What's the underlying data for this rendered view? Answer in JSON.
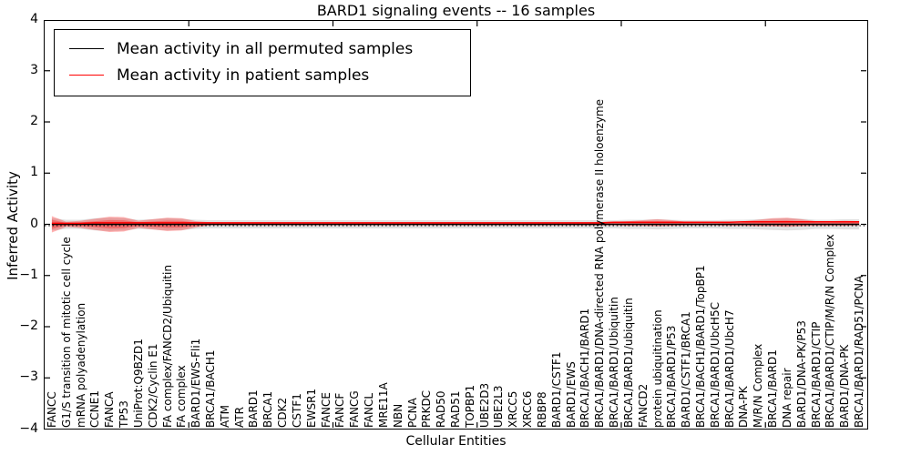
{
  "title": "BARD1 signaling events -- 16 samples",
  "axes": {
    "ylabel": "Inferred Activity",
    "xlabel": "Cellular Entities",
    "yticks": [
      4,
      3,
      2,
      1,
      0,
      -1,
      -2,
      -3,
      -4
    ],
    "ylim": [
      -4,
      4
    ]
  },
  "legend": {
    "entries": [
      {
        "label": "Mean activity in all permuted samples",
        "color": "#000000"
      },
      {
        "label": "Mean activity in patient samples",
        "color": "#ff0000"
      }
    ],
    "position": "upper left"
  },
  "colors": {
    "permuted_line": "#000000",
    "patient_line": "#ff0000",
    "patient_band_fill": "rgba(255,0,0,0.30)",
    "permuted_band_fill": "rgba(0,0,0,0.12)",
    "zero_reference_line": "#000000"
  },
  "chart_data": {
    "type": "line",
    "title": "BARD1 signaling events -- 16 samples",
    "xlabel": "Cellular Entities",
    "ylabel": "Inferred Activity",
    "ylim": [
      -4,
      4
    ],
    "legend_position": "upper left",
    "grid": false,
    "xticks_at": [
      10,
      20,
      30,
      40,
      50
    ],
    "categories": [
      "FANCC",
      "G1/S transition of mitotic cell cycle",
      "mRNA polyadenylation",
      "CCNE1",
      "FANCA",
      "TP53",
      "UniProt:Q9BZD1",
      "CDK2/Cyclin E1",
      "FA complex/FANCD2/Ubiquitin",
      "FA complex",
      "BARD1/EWS-Fli1",
      "BRCA1/BACH1",
      "ATM",
      "ATR",
      "BARD1",
      "BRCA1",
      "CDK2",
      "CSTF1",
      "EWSR1",
      "FANCE",
      "FANCF",
      "FANCG",
      "FANCL",
      "MRE11A",
      "NBN",
      "PCNA",
      "PRKDC",
      "RAD50",
      "RAD51",
      "TOPBP1",
      "UBE2D3",
      "UBE2L3",
      "XRCC5",
      "XRCC6",
      "RBBP8",
      "BARD1/CSTF1",
      "BARD1/EWS",
      "BRCA1/BACH1/BARD1",
      "BRCA1/BARD1/DNA-directed RNA polymerase II holoenzyme",
      "BRCA1/BARD1/Ubiquitin",
      "BRCA1/BARD1/ubiquitin",
      "FANCD2",
      "protein ubiquitination",
      "BRCA1/BARD1/P53",
      "BARD1/CSTF1/BRCA1",
      "BRCA1/BACH1/BARD1/TopBP1",
      "BRCA1/BARD1/UbcH5C",
      "BRCA1/BARD1/UbcH7",
      "DNA-PK",
      "M/R/N Complex",
      "BRCA1/BARD1",
      "DNA repair",
      "BARD1/DNA-PK/P53",
      "BRCA1/BARD1/CTIP",
      "BRCA1/BARD1/CTIP/M/R/N Complex",
      "BARD1/DNA-PK",
      "BRCA1/BARD1/RAD51/PCNA"
    ],
    "series": [
      {
        "name": "Mean activity in all permuted samples",
        "color": "#000000",
        "values": [
          0,
          0,
          0,
          0,
          0,
          0,
          0,
          0,
          0,
          0,
          0,
          0,
          0,
          0,
          0,
          0,
          0,
          0,
          0,
          0,
          0,
          0,
          0,
          0,
          0,
          0,
          0,
          0,
          0,
          0,
          0,
          0,
          0,
          0,
          0,
          0,
          0,
          0,
          0,
          0,
          0,
          0,
          0,
          0,
          0,
          0,
          0,
          0,
          0,
          0,
          0,
          0,
          0,
          0,
          0,
          0,
          0
        ]
      },
      {
        "name": "Mean activity in patient samples",
        "color": "#ff0000",
        "values": [
          0.02,
          0.02,
          0.02,
          0.03,
          0.03,
          0.03,
          0.03,
          0.03,
          0.03,
          0.03,
          0.03,
          0.03,
          0.03,
          0.03,
          0.03,
          0.03,
          0.03,
          0.03,
          0.03,
          0.03,
          0.03,
          0.03,
          0.03,
          0.03,
          0.03,
          0.03,
          0.03,
          0.03,
          0.03,
          0.03,
          0.03,
          0.03,
          0.03,
          0.03,
          0.03,
          0.03,
          0.03,
          0.03,
          0.03,
          0.04,
          0.04,
          0.04,
          0.04,
          0.04,
          0.04,
          0.04,
          0.04,
          0.04,
          0.05,
          0.05,
          0.05,
          0.05,
          0.05,
          0.05,
          0.05,
          0.05,
          0.05
        ]
      }
    ],
    "bands": [
      {
        "name": "Permuted samples activity range",
        "fill": "rgba(0,0,0,0.12)",
        "upper": [
          0.12,
          0.09,
          0.09,
          0.12,
          0.13,
          0.12,
          0.09,
          0.1,
          0.12,
          0.11,
          0.09,
          0.08,
          0.08,
          0.08,
          0.08,
          0.08,
          0.08,
          0.08,
          0.08,
          0.08,
          0.08,
          0.08,
          0.08,
          0.08,
          0.08,
          0.08,
          0.08,
          0.08,
          0.08,
          0.08,
          0.08,
          0.08,
          0.08,
          0.08,
          0.08,
          0.08,
          0.08,
          0.08,
          0.08,
          0.08,
          0.09,
          0.09,
          0.1,
          0.09,
          0.08,
          0.08,
          0.08,
          0.09,
          0.09,
          0.1,
          0.11,
          0.12,
          0.11,
          0.09,
          0.09,
          0.1,
          0.1
        ],
        "lower": [
          -0.12,
          -0.09,
          -0.09,
          -0.12,
          -0.13,
          -0.12,
          -0.09,
          -0.1,
          -0.12,
          -0.11,
          -0.09,
          -0.08,
          -0.08,
          -0.08,
          -0.08,
          -0.08,
          -0.08,
          -0.08,
          -0.08,
          -0.08,
          -0.08,
          -0.08,
          -0.08,
          -0.08,
          -0.08,
          -0.08,
          -0.08,
          -0.08,
          -0.08,
          -0.08,
          -0.08,
          -0.08,
          -0.08,
          -0.08,
          -0.08,
          -0.08,
          -0.08,
          -0.08,
          -0.08,
          -0.08,
          -0.09,
          -0.09,
          -0.1,
          -0.09,
          -0.08,
          -0.08,
          -0.08,
          -0.09,
          -0.09,
          -0.1,
          -0.11,
          -0.12,
          -0.11,
          -0.09,
          -0.09,
          -0.1,
          -0.1
        ]
      },
      {
        "name": "Patient samples activity range",
        "fill": "rgba(255,0,0,0.30)",
        "upper": [
          0.16,
          0.05,
          0.07,
          0.11,
          0.15,
          0.14,
          0.07,
          0.1,
          0.13,
          0.12,
          0.06,
          0.04,
          0.04,
          0.04,
          0.04,
          0.04,
          0.04,
          0.04,
          0.04,
          0.04,
          0.04,
          0.04,
          0.04,
          0.04,
          0.04,
          0.04,
          0.04,
          0.04,
          0.04,
          0.04,
          0.04,
          0.04,
          0.04,
          0.04,
          0.04,
          0.04,
          0.04,
          0.04,
          0.04,
          0.05,
          0.06,
          0.08,
          0.1,
          0.08,
          0.05,
          0.04,
          0.04,
          0.05,
          0.06,
          0.09,
          0.12,
          0.13,
          0.1,
          0.06,
          0.06,
          0.07,
          0.06
        ],
        "lower": [
          -0.16,
          -0.05,
          -0.07,
          -0.11,
          -0.15,
          -0.14,
          -0.07,
          -0.1,
          -0.13,
          -0.12,
          -0.06,
          -0.02,
          -0.02,
          -0.02,
          -0.02,
          -0.02,
          -0.02,
          -0.02,
          -0.02,
          -0.02,
          -0.02,
          -0.02,
          -0.02,
          -0.02,
          -0.02,
          -0.02,
          -0.02,
          -0.02,
          -0.02,
          -0.02,
          -0.02,
          -0.02,
          -0.02,
          -0.02,
          -0.02,
          -0.02,
          -0.02,
          -0.02,
          -0.02,
          -0.02,
          -0.03,
          -0.03,
          -0.04,
          -0.03,
          -0.02,
          -0.02,
          -0.02,
          -0.03,
          -0.03,
          -0.04,
          -0.04,
          -0.05,
          -0.04,
          -0.03,
          -0.03,
          -0.03,
          -0.02
        ]
      }
    ]
  }
}
